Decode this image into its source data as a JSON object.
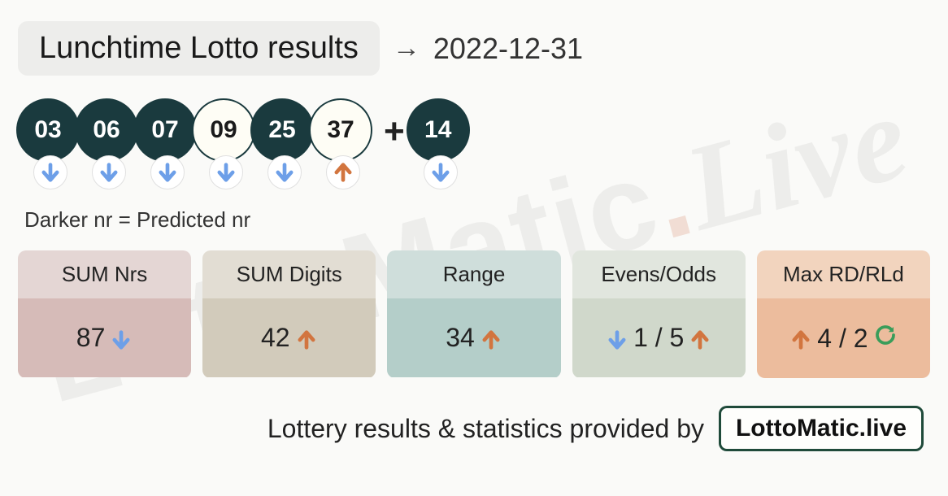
{
  "header": {
    "title": "Lunchtime Lotto results",
    "date": "2022-12-31"
  },
  "colors": {
    "ball_dark_bg": "#1a3a3e",
    "ball_dark_fg": "#ffffff",
    "ball_light_bg": "#fefdf5",
    "ball_light_fg": "#1a1a1a",
    "arrow_down": "#6d9fe8",
    "arrow_up": "#d2753f",
    "refresh": "#3a9d5a",
    "card1_head": "#e4d6d4",
    "card1_body": "#d6bbb8",
    "card2_head": "#e2ddd3",
    "card2_body": "#d2cbbb",
    "card3_head": "#cfdedb",
    "card3_body": "#b4cec9",
    "card4_head": "#e1e6de",
    "card4_body": "#d0d8cb",
    "card5_head": "#f2d4be",
    "card5_body": "#ecbc9d",
    "footer_border": "#1f4a3a"
  },
  "balls": [
    {
      "num": "03",
      "variant": "dark",
      "trend": "down"
    },
    {
      "num": "06",
      "variant": "dark",
      "trend": "down"
    },
    {
      "num": "07",
      "variant": "dark",
      "trend": "down"
    },
    {
      "num": "09",
      "variant": "light",
      "trend": "down"
    },
    {
      "num": "25",
      "variant": "dark",
      "trend": "down"
    },
    {
      "num": "37",
      "variant": "light",
      "trend": "up"
    }
  ],
  "bonus": {
    "num": "14",
    "variant": "dark",
    "trend": "down"
  },
  "legend": "Darker nr = Predicted nr",
  "stats": [
    {
      "label": "SUM Nrs",
      "value": "87",
      "indicators": [
        {
          "type": "down",
          "pos": "after"
        }
      ]
    },
    {
      "label": "SUM Digits",
      "value": "42",
      "indicators": [
        {
          "type": "up",
          "pos": "after"
        }
      ]
    },
    {
      "label": "Range",
      "value": "34",
      "indicators": [
        {
          "type": "up",
          "pos": "after"
        }
      ]
    },
    {
      "label": "Evens/Odds",
      "value": "1 / 5",
      "indicators": [
        {
          "type": "down",
          "pos": "before"
        },
        {
          "type": "up",
          "pos": "after"
        }
      ]
    },
    {
      "label": "Max RD/RLd",
      "value": "4 / 2",
      "indicators": [
        {
          "type": "up",
          "pos": "before"
        },
        {
          "type": "refresh",
          "pos": "after"
        }
      ]
    }
  ],
  "footer": {
    "text": "Lottery results & statistics provided by",
    "badge": "LottoMatic.live"
  },
  "watermark": {
    "a": "LottoMatic",
    "b": ".",
    "c": "Live"
  }
}
